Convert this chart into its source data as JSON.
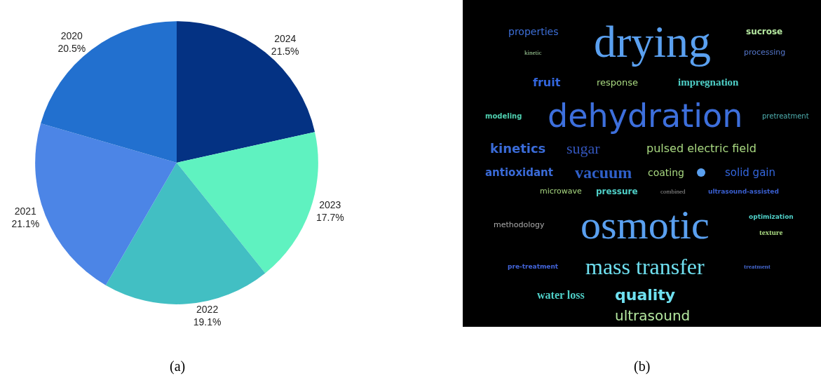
{
  "chart_data": [
    {
      "type": "pie",
      "categories": [
        "2024",
        "2023",
        "2022",
        "2021",
        "2020"
      ],
      "values": [
        21.5,
        17.7,
        19.1,
        21.1,
        20.5
      ],
      "value_labels": [
        "21.5%",
        "17.7%",
        "19.1%",
        "21.1%",
        "20.5%"
      ],
      "colors": [
        "#043283",
        "#5ff2c0",
        "#42bfc3",
        "#4c85e6",
        "#2270cf"
      ],
      "annotations": [
        "(a)"
      ]
    },
    {
      "type": "other",
      "annotations": [
        "properties",
        "drying",
        "kinetic",
        "sucrose",
        "fruit",
        "impregnation",
        "response",
        "processing",
        "dehydration",
        "modeling",
        "kinetics",
        "sugar",
        "pulsed electric field",
        "pretreatment",
        "vacuum",
        "coating",
        "combined",
        "solid gain",
        "ultrasound-assisted",
        "antioxidant",
        "microwave",
        "pressure",
        "osmotic",
        "methodology",
        "optimization",
        "texture",
        "mass transfer",
        "pre-treatment",
        "treatment",
        "water loss",
        "quality",
        "ultrasound",
        "(b)"
      ]
    }
  ]
}
